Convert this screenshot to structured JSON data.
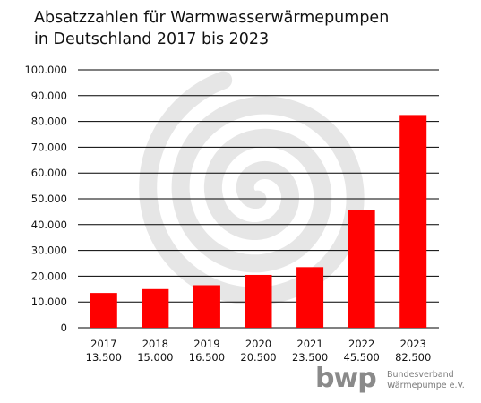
{
  "title": {
    "line1": "Absatzzahlen für Warmwasserwärmepumpen",
    "line2": "in Deutschland 2017 bis 2023"
  },
  "logo": {
    "mark": "bwp",
    "line1": "Bundesverband",
    "line2": "Wärmepumpe e.V."
  },
  "chart_data": {
    "type": "bar",
    "title": "Absatzzahlen für Warmwasserwärmepumpen in Deutschland 2017 bis 2023",
    "categories": [
      "2017",
      "2018",
      "2019",
      "2020",
      "2021",
      "2022",
      "2023"
    ],
    "value_labels": [
      "13.500",
      "15.000",
      "16.500",
      "20.500",
      "23.500",
      "45.500",
      "82.500"
    ],
    "values": [
      13500,
      15000,
      16500,
      20500,
      23500,
      45500,
      82500
    ],
    "ylim": [
      0,
      100000
    ],
    "yticks": [
      0,
      10000,
      20000,
      30000,
      40000,
      50000,
      60000,
      70000,
      80000,
      90000,
      100000
    ],
    "ytick_labels": [
      "0",
      "10.000",
      "20.000",
      "30.000",
      "40.000",
      "50.000",
      "60.000",
      "70.000",
      "80.000",
      "90.000",
      "100.000"
    ],
    "grid": true,
    "bar_color": "#ff0000",
    "grid_color": "#000000",
    "watermark_color": "#e6e6e6"
  }
}
